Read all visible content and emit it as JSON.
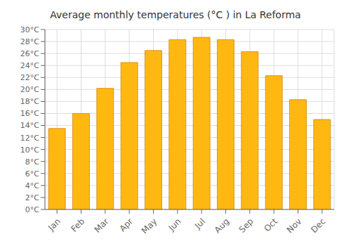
{
  "chart_data": {
    "type": "bar",
    "title": "Average monthly temperatures (°C ) in La Reforma",
    "categories": [
      "Jan",
      "Feb",
      "Mar",
      "Apr",
      "May",
      "Jun",
      "Jul",
      "Aug",
      "Sep",
      "Oct",
      "Nov",
      "Dec"
    ],
    "values": [
      13.5,
      16.0,
      20.2,
      24.5,
      26.5,
      28.3,
      28.7,
      28.3,
      26.3,
      22.3,
      18.3,
      15.0
    ],
    "color": "#FFB812",
    "ylim": [
      0,
      30
    ],
    "yticks": [
      {
        "value": 0,
        "label": "0°C"
      },
      {
        "value": 2,
        "label": "2°C"
      },
      {
        "value": 4,
        "label": "4°C"
      },
      {
        "value": 6,
        "label": "6°C"
      },
      {
        "value": 8,
        "label": "8°C"
      },
      {
        "value": 10,
        "label": "10°C"
      },
      {
        "value": 12,
        "label": "12°C"
      },
      {
        "value": 14,
        "label": "14°C"
      },
      {
        "value": 16,
        "label": "16°C"
      },
      {
        "value": 18,
        "label": "18°C"
      },
      {
        "value": 20,
        "label": "20°C"
      },
      {
        "value": 22,
        "label": "22°C"
      },
      {
        "value": 24,
        "label": "24°C"
      },
      {
        "value": 26,
        "label": "26°C"
      },
      {
        "value": 28,
        "label": "28°C"
      },
      {
        "value": 30,
        "label": "30°C"
      }
    ],
    "grid": true
  }
}
